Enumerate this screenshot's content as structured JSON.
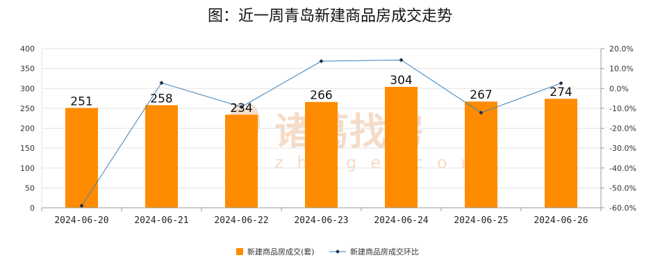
{
  "title": "图：近一周青岛新建商品房成交走势",
  "watermark": {
    "text": "诸葛找房",
    "subtext": "zhuge.com",
    "color": "#f3d9c4"
  },
  "colors": {
    "bar": "#ff8c00",
    "line": "#3a7fb8",
    "marker": "#1f2d4a",
    "grid": "#e3e3e3",
    "axis": "#9a9a9a"
  },
  "chart_data": {
    "type": "bar",
    "categories": [
      "2024-06-20",
      "2024-06-21",
      "2024-06-22",
      "2024-06-23",
      "2024-06-24",
      "2024-06-25",
      "2024-06-26"
    ],
    "series": [
      {
        "name": "新建商品房成交(套)",
        "type": "bar",
        "axis": "left",
        "values": [
          251,
          258,
          234,
          266,
          304,
          267,
          274
        ]
      },
      {
        "name": "新建商品房成交环比",
        "type": "line",
        "axis": "right",
        "values": [
          -59.0,
          2.8,
          -9.3,
          13.7,
          14.3,
          -12.2,
          2.6
        ]
      }
    ],
    "y_left": {
      "min": 0,
      "max": 400,
      "ticks": [
        0,
        50,
        100,
        150,
        200,
        250,
        300,
        350,
        400
      ]
    },
    "y_right": {
      "min": -60,
      "max": 20,
      "ticks": [
        -60,
        -50,
        -40,
        -30,
        -20,
        -10,
        0,
        10,
        20
      ],
      "tick_labels": [
        "-60.0%",
        "-50.0%",
        "-40.0%",
        "-30.0%",
        "-20.0%",
        "-10.0%",
        "0.0%",
        "10.0%",
        "20.0%"
      ]
    },
    "grid": true,
    "legend_position": "bottom"
  }
}
